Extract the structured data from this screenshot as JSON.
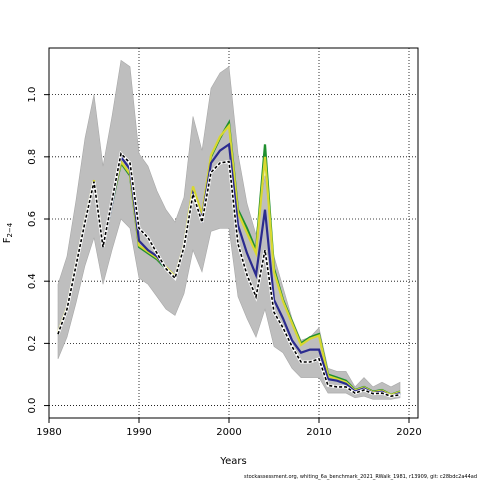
{
  "chart_data": {
    "type": "line",
    "xlabel": "Years",
    "ylabel_base": "F",
    "ylabel_sub": "2−4",
    "xlim": [
      1980,
      2021
    ],
    "ylim": [
      -0.04,
      1.15
    ],
    "x_ticks": [
      1980,
      1990,
      2000,
      2010,
      2020
    ],
    "y_ticks": [
      0.0,
      0.2,
      0.4,
      0.6,
      0.8,
      1.0
    ],
    "grid": true,
    "footnote": "stockassessment.org, whiting_6a_benchmark_2021_RWalk_1981, r13909, git: c28bdc2a44ad",
    "colors": {
      "band": "#bebebe",
      "band_edge": "#a8a8a8",
      "green": "#1f8f2f",
      "yellow": "#d8d830",
      "blue": "#2b2b8f",
      "cyan": "#7fd8ff",
      "black": "#000000",
      "white": "#ffffff"
    },
    "band": {
      "x": [
        1981,
        1982,
        1983,
        1984,
        1985,
        1986,
        1987,
        1988,
        1989,
        1990,
        1991,
        1992,
        1993,
        1994,
        1995,
        1996,
        1997,
        1998,
        1999,
        2000,
        2001,
        2002,
        2003,
        2004,
        2005,
        2006,
        2007,
        2008,
        2009,
        2010,
        2011,
        2012,
        2013,
        2014,
        2015,
        2016,
        2017,
        2018,
        2019
      ],
      "lower": [
        0.15,
        0.22,
        0.33,
        0.45,
        0.54,
        0.39,
        0.5,
        0.6,
        0.57,
        0.41,
        0.39,
        0.35,
        0.31,
        0.29,
        0.36,
        0.5,
        0.43,
        0.56,
        0.57,
        0.57,
        0.35,
        0.28,
        0.22,
        0.31,
        0.19,
        0.17,
        0.12,
        0.09,
        0.09,
        0.09,
        0.04,
        0.04,
        0.04,
        0.025,
        0.03,
        0.02,
        0.02,
        0.02,
        0.025
      ],
      "upper": [
        0.39,
        0.48,
        0.66,
        0.86,
        1.0,
        0.77,
        0.93,
        1.11,
        1.09,
        0.81,
        0.77,
        0.69,
        0.63,
        0.59,
        0.67,
        0.93,
        0.82,
        1.02,
        1.07,
        1.09,
        0.81,
        0.65,
        0.55,
        0.74,
        0.48,
        0.38,
        0.28,
        0.21,
        0.22,
        0.25,
        0.12,
        0.11,
        0.11,
        0.06,
        0.09,
        0.06,
        0.075,
        0.06,
        0.075
      ]
    },
    "series": [
      {
        "color_key": "green",
        "x": [
          1981,
          1982,
          1983,
          1984,
          1985,
          1986,
          1987,
          1988,
          1989,
          1990,
          1991,
          1992,
          1993,
          1994,
          1995,
          1996,
          1997,
          1998,
          1999,
          2000,
          2001,
          2002,
          2003,
          2004,
          2005,
          2006,
          2007,
          2008,
          2009,
          2010,
          2011,
          2012,
          2013,
          2014,
          2015,
          2016,
          2017,
          2018,
          2019
        ],
        "y": [
          0.23,
          0.31,
          0.45,
          0.59,
          0.72,
          0.51,
          0.65,
          0.78,
          0.74,
          0.51,
          0.49,
          0.47,
          0.44,
          0.41,
          0.51,
          0.7,
          0.61,
          0.8,
          0.86,
          0.91,
          0.63,
          0.57,
          0.5,
          0.84,
          0.44,
          0.34,
          0.27,
          0.2,
          0.22,
          0.23,
          0.1,
          0.09,
          0.08,
          0.05,
          0.06,
          0.045,
          0.05,
          0.035,
          0.045
        ]
      },
      {
        "color_key": "yellow",
        "x": [
          1981,
          1982,
          1983,
          1984,
          1985,
          1986,
          1987,
          1988,
          1989,
          1990,
          1991,
          1992,
          1993,
          1994,
          1995,
          1996,
          1997,
          1998,
          1999,
          2000,
          2001,
          2002,
          2003,
          2004,
          2005,
          2006,
          2007,
          2008,
          2009,
          2010,
          2011,
          2012,
          2013,
          2014,
          2015,
          2016,
          2017,
          2018,
          2019
        ],
        "y": [
          0.235,
          0.315,
          0.455,
          0.595,
          0.725,
          0.515,
          0.655,
          0.785,
          0.745,
          0.515,
          0.495,
          0.475,
          0.445,
          0.415,
          0.515,
          0.705,
          0.615,
          0.805,
          0.865,
          0.9,
          0.62,
          0.555,
          0.49,
          0.8,
          0.43,
          0.335,
          0.265,
          0.195,
          0.215,
          0.225,
          0.095,
          0.085,
          0.075,
          0.048,
          0.058,
          0.043,
          0.048,
          0.034,
          0.044
        ]
      },
      {
        "color_key": "cyan",
        "x": [
          2011,
          2012,
          2013,
          2014,
          2015,
          2016,
          2017,
          2018,
          2019
        ],
        "y": [
          0.085,
          0.08,
          0.07,
          0.045,
          0.055,
          0.04,
          0.042,
          0.03,
          0.04
        ]
      },
      {
        "color_key": "blue",
        "x": [
          1981,
          1982,
          1983,
          1984,
          1985,
          1986,
          1987,
          1988,
          1989,
          1990,
          1991,
          1992,
          1993,
          1994,
          1995,
          1996,
          1997,
          1998,
          1999,
          2000,
          2001,
          2002,
          2003,
          2004,
          2005,
          2006,
          2007,
          2008,
          2009,
          2010,
          2011,
          2012,
          2013,
          2014,
          2015,
          2016,
          2017,
          2018,
          2019
        ],
        "y": [
          0.23,
          0.31,
          0.45,
          0.59,
          0.72,
          0.51,
          0.65,
          0.8,
          0.76,
          0.53,
          0.5,
          0.48,
          0.44,
          0.41,
          0.51,
          0.68,
          0.6,
          0.78,
          0.82,
          0.84,
          0.58,
          0.49,
          0.42,
          0.63,
          0.34,
          0.28,
          0.21,
          0.17,
          0.18,
          0.18,
          0.085,
          0.08,
          0.07,
          0.045,
          0.055,
          0.04,
          0.045,
          0.03,
          0.04
        ]
      },
      {
        "color_key": "black",
        "dashed": true,
        "x": [
          1981,
          1982,
          1983,
          1984,
          1985,
          1986,
          1987,
          1988,
          1989,
          1990,
          1991,
          1992,
          1993,
          1994,
          1995,
          1996,
          1997,
          1998,
          1999,
          2000,
          2001,
          2002,
          2003,
          2004,
          2005,
          2006,
          2007,
          2008,
          2009,
          2010,
          2011,
          2012,
          2013,
          2014,
          2015,
          2016,
          2017,
          2018,
          2019
        ],
        "y": [
          0.23,
          0.31,
          0.45,
          0.59,
          0.72,
          0.51,
          0.66,
          0.81,
          0.78,
          0.57,
          0.54,
          0.49,
          0.44,
          0.41,
          0.51,
          0.68,
          0.59,
          0.75,
          0.78,
          0.785,
          0.52,
          0.42,
          0.35,
          0.5,
          0.3,
          0.25,
          0.19,
          0.14,
          0.14,
          0.15,
          0.065,
          0.06,
          0.06,
          0.04,
          0.05,
          0.038,
          0.04,
          0.03,
          0.035
        ]
      }
    ]
  }
}
